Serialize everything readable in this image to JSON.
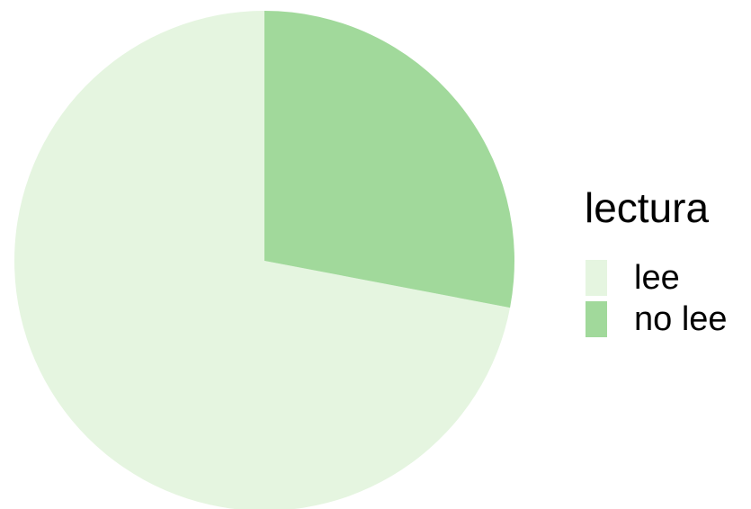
{
  "chart_data": {
    "type": "pie",
    "legend_title": "lectura",
    "categories": [
      "lee",
      "no lee"
    ],
    "values": [
      72,
      28
    ],
    "colors": [
      "#e5f5e0",
      "#a1d99b"
    ],
    "legend": "right"
  }
}
